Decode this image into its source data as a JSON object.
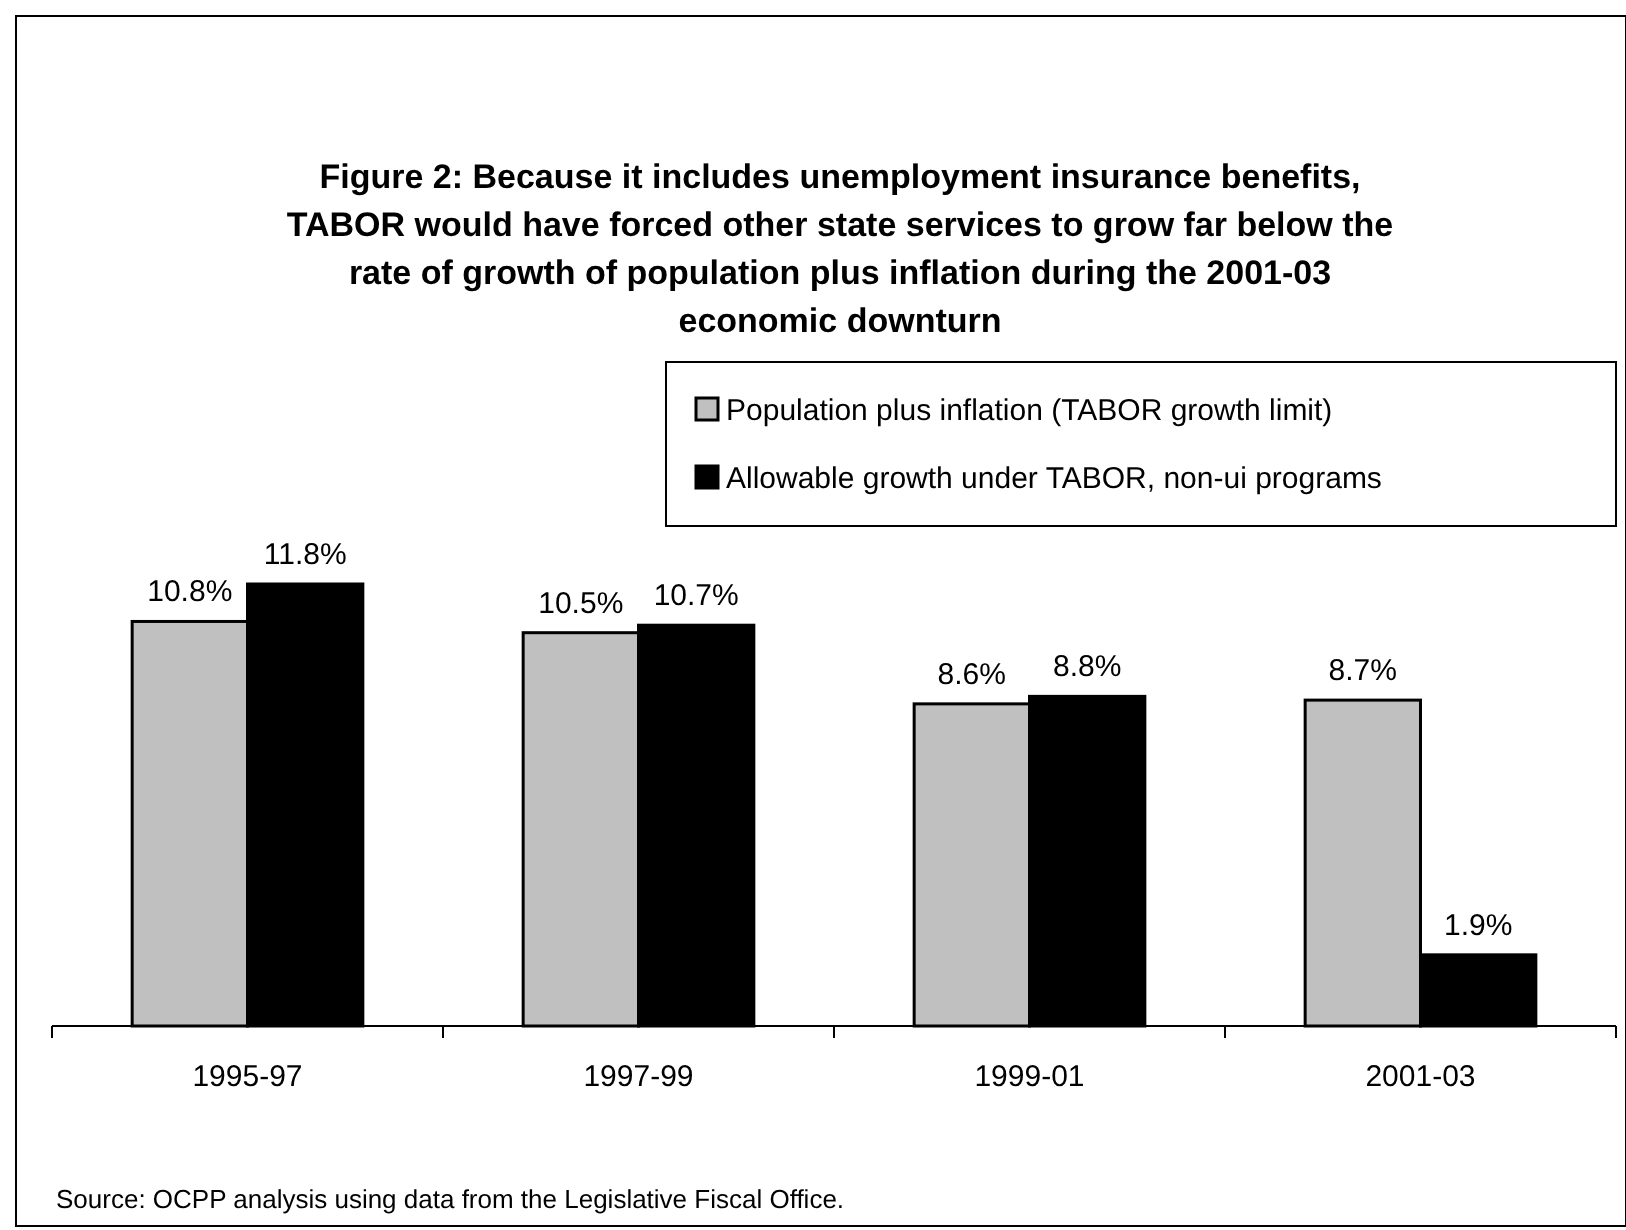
{
  "chart_data": {
    "type": "bar",
    "title": "Figure 2: Because it includes unemployment insurance benefits, TABOR would have forced other state services to grow far below the rate of growth of population plus inflation during the 2001-03 economic downturn",
    "categories": [
      "1995-97",
      "1997-99",
      "1999-01",
      "2001-03"
    ],
    "series": [
      {
        "name": "Population plus inflation (TABOR growth limit)",
        "color": "#c0c0c0",
        "values": [
          10.8,
          10.5,
          8.6,
          8.7
        ],
        "value_labels": [
          "10.8%",
          "10.5%",
          "8.6%",
          "8.7%"
        ]
      },
      {
        "name": "Allowable growth under TABOR, non-ui programs",
        "color": "#000000",
        "values": [
          11.8,
          10.7,
          8.8,
          1.9
        ],
        "value_labels": [
          "11.8%",
          "10.7%",
          "8.8%",
          "1.9%"
        ]
      }
    ],
    "legend": "top right",
    "tick_labels": "x",
    "annotations": [
      "Source: OCPP analysis using data from the Legislative Fiscal Office."
    ]
  }
}
